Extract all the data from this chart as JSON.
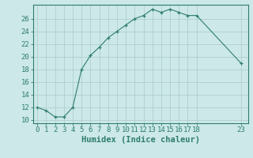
{
  "x": [
    0,
    1,
    2,
    3,
    4,
    5,
    6,
    7,
    8,
    9,
    10,
    11,
    12,
    13,
    14,
    15,
    16,
    17,
    18,
    23
  ],
  "y": [
    12,
    11.5,
    10.5,
    10.5,
    12,
    18,
    20.2,
    21.5,
    23,
    24,
    25,
    26,
    26.5,
    27.5,
    27,
    27.5,
    27,
    26.5,
    26.5,
    19
  ],
  "line_color": "#2e7d6e",
  "marker": "+",
  "bg_color": "#cce8e8",
  "grid_color": "#aacaca",
  "xlabel": "Humidex (Indice chaleur)",
  "xlim": [
    -0.5,
    23.8
  ],
  "ylim": [
    9.5,
    28.2
  ],
  "yticks": [
    10,
    12,
    14,
    16,
    18,
    20,
    22,
    24,
    26
  ],
  "xticks": [
    0,
    1,
    2,
    3,
    4,
    5,
    6,
    7,
    8,
    9,
    10,
    11,
    12,
    13,
    14,
    15,
    16,
    17,
    18,
    23
  ],
  "xtick_labels": [
    "0",
    "1",
    "2",
    "3",
    "4",
    "5",
    "6",
    "7",
    "8",
    "9",
    "10",
    "11",
    "12",
    "13",
    "14",
    "15",
    "16",
    "17",
    "18",
    "23"
  ],
  "axis_color": "#2e7d6e",
  "tick_color": "#2e7d6e",
  "label_color": "#2e7d6e",
  "font_size_label": 7.5,
  "font_size_tick": 6.5
}
